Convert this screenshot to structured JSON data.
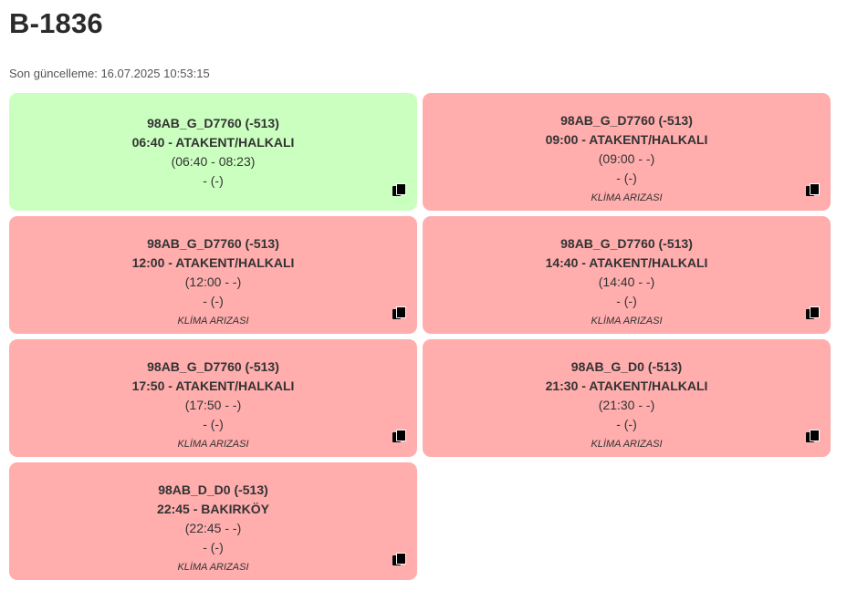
{
  "page": {
    "title": "B-1836",
    "updated": "Son güncelleme: 16.07.2025 10:53:15"
  },
  "cards": [
    {
      "code": "98AB_G_D7760 (-513)",
      "trip": "06:40 - ATAKENT/HALKALI",
      "range": "(06:40 - 08:23)",
      "extra": "- (-)",
      "note": "",
      "status": "ok",
      "icon": "copy-icon"
    },
    {
      "code": "98AB_G_D7760 (-513)",
      "trip": "09:00 - ATAKENT/HALKALI",
      "range": "(09:00 - -)",
      "extra": "- (-)",
      "note": "KLİMA ARIZASI",
      "status": "fault",
      "icon": "copy-icon"
    },
    {
      "code": "98AB_G_D7760 (-513)",
      "trip": "12:00 - ATAKENT/HALKALI",
      "range": "(12:00 - -)",
      "extra": "- (-)",
      "note": "KLİMA ARIZASI",
      "status": "fault",
      "icon": "copy-icon"
    },
    {
      "code": "98AB_G_D7760 (-513)",
      "trip": "14:40 - ATAKENT/HALKALI",
      "range": "(14:40 - -)",
      "extra": "- (-)",
      "note": "KLİMA ARIZASI",
      "status": "fault",
      "icon": "copy-icon"
    },
    {
      "code": "98AB_G_D7760 (-513)",
      "trip": "17:50 - ATAKENT/HALKALI",
      "range": "(17:50 - -)",
      "extra": "- (-)",
      "note": "KLİMA ARIZASI",
      "status": "fault",
      "icon": "copy-icon"
    },
    {
      "code": "98AB_G_D0 (-513)",
      "trip": "21:30 - ATAKENT/HALKALI",
      "range": "(21:30 - -)",
      "extra": "- (-)",
      "note": "KLİMA ARIZASI",
      "status": "fault",
      "icon": "copy-icon"
    },
    {
      "code": "98AB_D_D0 (-513)",
      "trip": "22:45 - BAKIRKÖY",
      "range": "(22:45 - -)",
      "extra": "- (-)",
      "note": "KLİMA ARIZASI",
      "status": "fault",
      "icon": "copy-icon"
    }
  ],
  "colors": {
    "ok": "#caffbf",
    "fault": "#ffadad"
  }
}
